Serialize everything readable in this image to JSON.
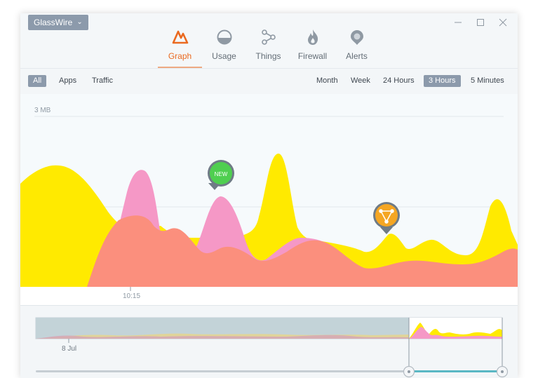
{
  "app": {
    "menu_label": "GlassWire"
  },
  "tabs": [
    {
      "label": "Graph",
      "icon": "graph-icon",
      "active": true
    },
    {
      "label": "Usage",
      "icon": "usage-icon",
      "active": false
    },
    {
      "label": "Things",
      "icon": "things-icon",
      "active": false
    },
    {
      "label": "Firewall",
      "icon": "firewall-icon",
      "active": false
    },
    {
      "label": "Alerts",
      "icon": "alerts-icon",
      "active": false
    }
  ],
  "filters": {
    "all": "All",
    "apps": "Apps",
    "traffic": "Traffic"
  },
  "ranges": {
    "month": "Month",
    "week": "Week",
    "hours24": "24  Hours",
    "hours3": "3  Hours",
    "minutes5": "5 Minutes",
    "selected": "3 Hours"
  },
  "chart": {
    "y_max_label": "3 MB",
    "time_label": "10:15",
    "new_badge": "NEW",
    "colors": {
      "incoming": "#ffea00",
      "outgoing_pink": "#f598c6",
      "outgoing_salmon": "#fb8f7d",
      "accent": "#ea6a21",
      "new_badge": "#4fcf50",
      "alert_badge": "#f5a623"
    }
  },
  "overview": {
    "date_label": "8 Jul",
    "selection_color": "#5ab8c4"
  }
}
